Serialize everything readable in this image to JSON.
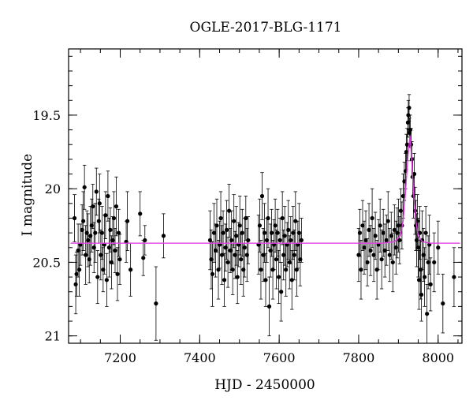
{
  "chart_data": {
    "type": "scatter",
    "title": "OGLE-2017-BLG-1171",
    "xlabel": "HJD - 2450000",
    "ylabel": "I magnitude",
    "xlim": [
      7070,
      8060
    ],
    "ylim": [
      21.05,
      19.05
    ],
    "y_inverted": true,
    "xticks": [
      7200,
      7400,
      7600,
      7800,
      8000
    ],
    "yticks": [
      19.5,
      20,
      20.5,
      21
    ],
    "ytick_labels": [
      "19.5",
      "20",
      "20.5",
      "21"
    ],
    "baseline_mag": 20.37,
    "model_color": "#e040e0",
    "point_color": "#000000",
    "series": [
      {
        "kind": "data",
        "points": [
          [
            7085,
            20.2,
            0.16
          ],
          [
            7088,
            20.65,
            0.2
          ],
          [
            7090,
            20.58,
            0.15
          ],
          [
            7094,
            20.42,
            0.18
          ],
          [
            7097,
            20.55,
            0.18
          ],
          [
            7100,
            20.38,
            0.14
          ],
          [
            7104,
            20.28,
            0.17
          ],
          [
            7107,
            20.22,
            0.2
          ],
          [
            7110,
            19.99,
            0.15
          ],
          [
            7113,
            20.45,
            0.2
          ],
          [
            7116,
            20.3,
            0.15
          ],
          [
            7119,
            20.35,
            0.18
          ],
          [
            7122,
            20.48,
            0.16
          ],
          [
            7125,
            20.32,
            0.2
          ],
          [
            7128,
            20.25,
            0.18
          ],
          [
            7131,
            20.12,
            0.15
          ],
          [
            7134,
            20.4,
            0.17
          ],
          [
            7137,
            20.3,
            0.2
          ],
          [
            7140,
            20.02,
            0.16
          ],
          [
            7143,
            20.6,
            0.18
          ],
          [
            7146,
            20.22,
            0.15
          ],
          [
            7148,
            20.1,
            0.2
          ],
          [
            7151,
            20.45,
            0.17
          ],
          [
            7154,
            20.3,
            0.18
          ],
          [
            7157,
            20.55,
            0.15
          ],
          [
            7160,
            20.38,
            0.2
          ],
          [
            7163,
            20.18,
            0.16
          ],
          [
            7166,
            20.62,
            0.18
          ],
          [
            7169,
            20.05,
            0.17
          ],
          [
            7172,
            20.4,
            0.2
          ],
          [
            7175,
            20.28,
            0.15
          ],
          [
            7178,
            20.5,
            0.18
          ],
          [
            7181,
            20.35,
            0.16
          ],
          [
            7184,
            20.2,
            0.18
          ],
          [
            7187,
            20.42,
            0.15
          ],
          [
            7190,
            20.12,
            0.2
          ],
          [
            7193,
            20.58,
            0.18
          ],
          [
            7196,
            20.3,
            0.16
          ],
          [
            7199,
            20.48,
            0.17
          ],
          [
            7215,
            20.36,
            0.14
          ],
          [
            7218,
            20.22,
            0.2
          ],
          [
            7226,
            20.55,
            0.18
          ],
          [
            7250,
            20.17,
            0.15
          ],
          [
            7258,
            20.47,
            0.12
          ],
          [
            7262,
            20.35,
            0.1
          ],
          [
            7290,
            20.78,
            0.25
          ],
          [
            7309,
            20.32,
            0.15
          ],
          [
            7426,
            20.35,
            0.2
          ],
          [
            7429,
            20.48,
            0.2
          ],
          [
            7432,
            20.58,
            0.22
          ],
          [
            7436,
            20.3,
            0.2
          ],
          [
            7440,
            20.42,
            0.18
          ],
          [
            7443,
            20.25,
            0.18
          ],
          [
            7447,
            20.55,
            0.2
          ],
          [
            7450,
            20.38,
            0.16
          ],
          [
            7453,
            20.2,
            0.18
          ],
          [
            7456,
            20.45,
            0.2
          ],
          [
            7459,
            20.3,
            0.15
          ],
          [
            7462,
            20.62,
            0.18
          ],
          [
            7465,
            20.4,
            0.16
          ],
          [
            7468,
            20.28,
            0.2
          ],
          [
            7471,
            20.5,
            0.17
          ],
          [
            7474,
            20.15,
            0.18
          ],
          [
            7477,
            20.42,
            0.15
          ],
          [
            7480,
            20.35,
            0.2
          ],
          [
            7483,
            20.55,
            0.17
          ],
          [
            7486,
            20.22,
            0.18
          ],
          [
            7489,
            20.45,
            0.16
          ],
          [
            7492,
            20.32,
            0.2
          ],
          [
            7495,
            20.6,
            0.18
          ],
          [
            7498,
            20.38,
            0.15
          ],
          [
            7501,
            20.25,
            0.2
          ],
          [
            7504,
            20.48,
            0.17
          ],
          [
            7507,
            20.3,
            0.16
          ],
          [
            7510,
            20.55,
            0.18
          ],
          [
            7513,
            20.4,
            0.2
          ],
          [
            7516,
            20.2,
            0.15
          ],
          [
            7519,
            20.45,
            0.18
          ],
          [
            7522,
            20.35,
            0.16
          ],
          [
            7548,
            20.38,
            0.2
          ],
          [
            7551,
            20.25,
            0.18
          ],
          [
            7554,
            20.55,
            0.2
          ],
          [
            7557,
            20.05,
            0.16
          ],
          [
            7560,
            20.45,
            0.18
          ],
          [
            7563,
            20.3,
            0.2
          ],
          [
            7566,
            20.62,
            0.18
          ],
          [
            7569,
            20.35,
            0.15
          ],
          [
            7572,
            20.2,
            0.2
          ],
          [
            7575,
            20.8,
            0.2
          ],
          [
            7578,
            20.42,
            0.18
          ],
          [
            7581,
            20.3,
            0.16
          ],
          [
            7584,
            20.55,
            0.2
          ],
          [
            7587,
            20.38,
            0.17
          ],
          [
            7590,
            20.25,
            0.18
          ],
          [
            7593,
            20.48,
            0.2
          ],
          [
            7596,
            20.3,
            0.16
          ],
          [
            7599,
            20.6,
            0.18
          ],
          [
            7602,
            20.35,
            0.15
          ],
          [
            7605,
            20.7,
            0.2
          ],
          [
            7608,
            20.2,
            0.18
          ],
          [
            7611,
            20.45,
            0.17
          ],
          [
            7614,
            20.32,
            0.2
          ],
          [
            7617,
            20.55,
            0.18
          ],
          [
            7620,
            20.38,
            0.15
          ],
          [
            7623,
            20.28,
            0.2
          ],
          [
            7626,
            20.5,
            0.18
          ],
          [
            7629,
            20.35,
            0.16
          ],
          [
            7632,
            20.62,
            0.2
          ],
          [
            7635,
            20.3,
            0.18
          ],
          [
            7638,
            20.45,
            0.17
          ],
          [
            7641,
            20.22,
            0.2
          ],
          [
            7644,
            20.55,
            0.18
          ],
          [
            7647,
            20.38,
            0.16
          ],
          [
            7650,
            20.3,
            0.2
          ],
          [
            7653,
            20.48,
            0.18
          ],
          [
            7656,
            20.35,
            0.15
          ],
          [
            7800,
            20.45,
            0.18
          ],
          [
            7803,
            20.3,
            0.16
          ],
          [
            7806,
            20.55,
            0.2
          ],
          [
            7810,
            20.25,
            0.17
          ],
          [
            7814,
            20.4,
            0.18
          ],
          [
            7818,
            20.35,
            0.2
          ],
          [
            7822,
            20.5,
            0.16
          ],
          [
            7826,
            20.28,
            0.18
          ],
          [
            7830,
            20.42,
            0.17
          ],
          [
            7834,
            20.2,
            0.2
          ],
          [
            7838,
            20.45,
            0.18
          ],
          [
            7842,
            20.32,
            0.16
          ],
          [
            7846,
            20.55,
            0.2
          ],
          [
            7850,
            20.38,
            0.17
          ],
          [
            7854,
            20.25,
            0.18
          ],
          [
            7858,
            20.48,
            0.2
          ],
          [
            7862,
            20.3,
            0.16
          ],
          [
            7866,
            20.42,
            0.18
          ],
          [
            7870,
            20.35,
            0.17
          ],
          [
            7874,
            20.22,
            0.2
          ],
          [
            7878,
            20.45,
            0.18
          ],
          [
            7882,
            20.32,
            0.16
          ],
          [
            7886,
            20.5,
            0.2
          ],
          [
            7890,
            20.28,
            0.17
          ],
          [
            7894,
            20.4,
            0.18
          ],
          [
            7897,
            20.3,
            0.17
          ],
          [
            7900,
            20.25,
            0.18
          ],
          [
            7903,
            20.35,
            0.16
          ],
          [
            7906,
            20.15,
            0.15
          ],
          [
            7909,
            20.25,
            0.16
          ],
          [
            7912,
            20.05,
            0.15
          ],
          [
            7915,
            19.95,
            0.13
          ],
          [
            7918,
            19.88,
            0.12
          ],
          [
            7920,
            19.75,
            0.12
          ],
          [
            7922,
            19.7,
            0.11
          ],
          [
            7924,
            19.55,
            0.1
          ],
          [
            7925,
            19.5,
            0.1
          ],
          [
            7927,
            19.45,
            0.09
          ],
          [
            7928,
            19.62,
            0.1
          ],
          [
            7930,
            19.6,
            0.1
          ],
          [
            7932,
            19.7,
            0.11
          ],
          [
            7934,
            19.8,
            0.12
          ],
          [
            7936,
            19.92,
            0.13
          ],
          [
            7938,
            20.05,
            0.15
          ],
          [
            7940,
            19.9,
            0.14
          ],
          [
            7942,
            20.15,
            0.16
          ],
          [
            7944,
            20.25,
            0.17
          ],
          [
            7946,
            20.35,
            0.18
          ],
          [
            7948,
            20.22,
            0.18
          ],
          [
            7950,
            20.4,
            0.2
          ],
          [
            7952,
            20.62,
            0.2
          ],
          [
            7954,
            20.3,
            0.18
          ],
          [
            7956,
            20.55,
            0.2
          ],
          [
            7958,
            20.72,
            0.18
          ],
          [
            7960,
            20.35,
            0.2
          ],
          [
            7963,
            20.45,
            0.18
          ],
          [
            7966,
            20.6,
            0.2
          ],
          [
            7969,
            20.3,
            0.18
          ],
          [
            7972,
            20.85,
            0.2
          ],
          [
            7975,
            20.5,
            0.18
          ],
          [
            7978,
            20.38,
            0.2
          ],
          [
            7981,
            20.65,
            0.18
          ],
          [
            7990,
            20.5,
            0.2
          ],
          [
            8000,
            20.4,
            0.18
          ],
          [
            8012,
            20.78,
            0.2
          ],
          [
            8040,
            20.6,
            0.2
          ]
        ]
      },
      {
        "kind": "model",
        "points": [
          [
            7075,
            20.37
          ],
          [
            7860,
            20.37
          ],
          [
            7890,
            20.36
          ],
          [
            7905,
            20.32
          ],
          [
            7912,
            20.22
          ],
          [
            7918,
            20.02
          ],
          [
            7924,
            19.78
          ],
          [
            7929,
            19.64
          ],
          [
            7933,
            19.78
          ],
          [
            7938,
            20.02
          ],
          [
            7944,
            20.22
          ],
          [
            7950,
            20.32
          ],
          [
            7960,
            20.36
          ],
          [
            7980,
            20.37
          ],
          [
            8055,
            20.37
          ]
        ]
      }
    ]
  }
}
